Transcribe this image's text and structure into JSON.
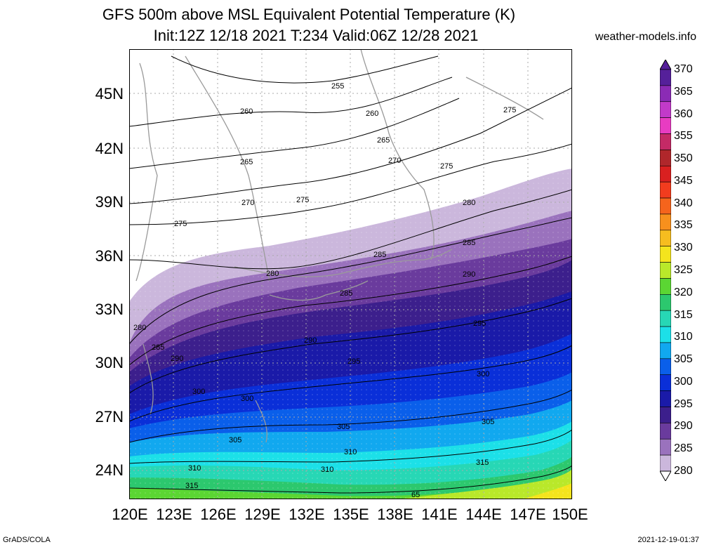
{
  "title_line1": "GFS 500m above MSL Equivalent Potential Temperature (K)",
  "title_line2": "Init:12Z 12/18 2021 T:234 Valid:06Z 12/28 2021",
  "site": "weather-models.info",
  "footer_left": "GrADS/COLA",
  "footer_right": "2021-12-19-01:37",
  "lat_labels": [
    "45N",
    "42N",
    "39N",
    "36N",
    "33N",
    "30N",
    "27N",
    "24N"
  ],
  "lon_labels": [
    "120E",
    "123E",
    "126E",
    "129E",
    "132E",
    "135E",
    "138E",
    "141E",
    "144E",
    "147E",
    "150E"
  ],
  "colorbar": {
    "levels": [
      "370",
      "365",
      "360",
      "355",
      "350",
      "345",
      "340",
      "335",
      "330",
      "325",
      "320",
      "315",
      "310",
      "305",
      "300",
      "295",
      "290",
      "285",
      "280"
    ],
    "colors": [
      "#55209a",
      "#8b2bb5",
      "#c23ac9",
      "#e83cc2",
      "#c42a66",
      "#b0272b",
      "#d92020",
      "#f23c1e",
      "#f5641c",
      "#f7901d",
      "#f6bd1f",
      "#f4e41d",
      "#b9e82a",
      "#5bd633",
      "#2cc86e",
      "#27d7b5",
      "#1ce0e8",
      "#11a8ef",
      "#0a5fea",
      "#0a2fd8",
      "#1a1aa8",
      "#3c1f8c",
      "#6a3b9d",
      "#9a72bd",
      "#cbb7dc"
    ]
  },
  "contour_labels": [
    "255",
    "260",
    "260",
    "265",
    "265",
    "270",
    "270",
    "275",
    "275",
    "275",
    "275",
    "280",
    "280",
    "280",
    "285",
    "285",
    "285",
    "285",
    "290",
    "290",
    "290",
    "295",
    "295",
    "300",
    "300",
    "300",
    "305",
    "305",
    "305",
    "310",
    "310",
    "310",
    "315",
    "315",
    "65"
  ]
}
